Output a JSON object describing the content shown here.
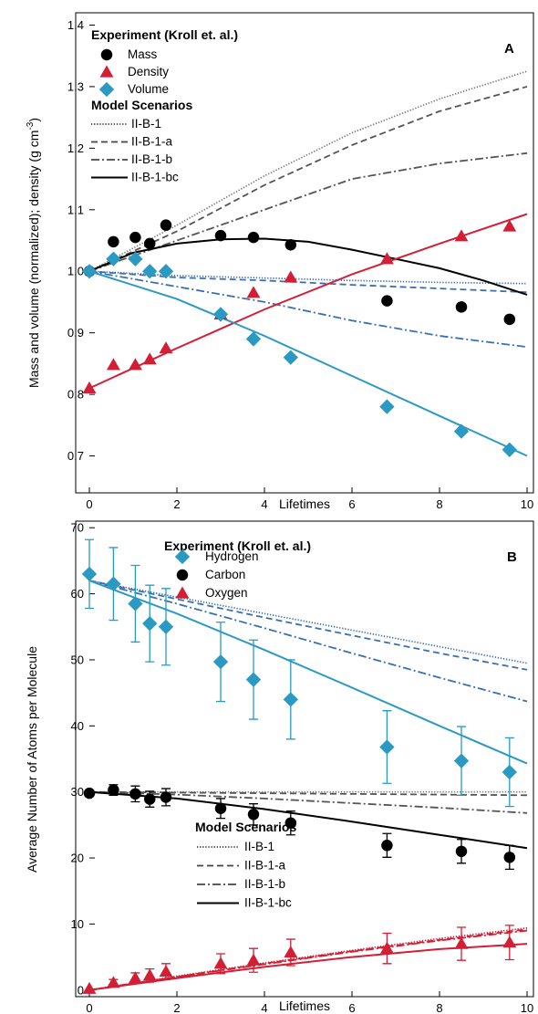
{
  "chart_data": [
    {
      "panel": "A",
      "type": "scatter",
      "xlabel": "Lifetimes",
      "ylabel": "Mass and volume (normalized); density (g cm-3)",
      "ylabel_parts": {
        "main": "Mass and volume (normalized); density (g cm",
        "sup": "-3",
        "end": ")"
      },
      "xlim": [
        0,
        10
      ],
      "ylim": [
        0.64,
        1.42
      ],
      "xticks": [
        "0",
        "2",
        "4",
        "6",
        "8",
        "10"
      ],
      "yticks": [
        "0.7",
        "0.8",
        "0.9",
        "1.0",
        "1.1",
        "1.2",
        "1.3",
        "1.4"
      ],
      "grid": false,
      "legend_placement": "top-left",
      "experiment_title": "Experiment (Kroll et. al.)",
      "model_title": "Model Scenarios",
      "experiment_series": [
        {
          "name": "Mass",
          "marker": "circle",
          "color": "#000000",
          "x": [
            0,
            0.55,
            1.05,
            1.38,
            1.75,
            3.0,
            3.75,
            4.6,
            6.8,
            8.5,
            9.6
          ],
          "y": [
            1.0,
            1.048,
            1.055,
            1.045,
            1.075,
            1.058,
            1.055,
            1.043,
            0.952,
            0.942,
            0.922
          ]
        },
        {
          "name": "Density",
          "marker": "triangle",
          "color": "#d21f35",
          "x": [
            0,
            0.55,
            1.05,
            1.38,
            1.75,
            3.0,
            3.75,
            4.6,
            6.8,
            8.5,
            9.6
          ],
          "y": [
            0.81,
            0.848,
            0.848,
            0.857,
            0.875,
            0.93,
            0.965,
            0.99,
            1.02,
            1.057,
            1.073
          ]
        },
        {
          "name": "Volume",
          "marker": "diamond",
          "color": "#2a9ac3",
          "x": [
            0,
            0.55,
            1.05,
            1.38,
            1.75,
            3.0,
            3.75,
            4.6,
            6.8,
            8.5,
            9.6
          ],
          "y": [
            1.0,
            1.02,
            1.02,
            1.0,
            1.0,
            0.93,
            0.89,
            0.86,
            0.78,
            0.74,
            0.71
          ]
        }
      ],
      "model_series": [
        {
          "name": "II-B-1",
          "style": "dotted",
          "color": "#777777",
          "x": [
            0,
            2,
            4,
            6,
            8,
            10
          ],
          "y": [
            1.0,
            1.075,
            1.155,
            1.225,
            1.28,
            1.325
          ]
        },
        {
          "name": "II-B-1",
          "style": "dotted",
          "color": "#3a70b0",
          "x": [
            0,
            2,
            4,
            6,
            8,
            10
          ],
          "y": [
            1.0,
            0.993,
            0.989,
            0.985,
            0.982,
            0.98
          ]
        },
        {
          "name": "II-B-1-a",
          "style": "dashed",
          "color": "#555555",
          "x": [
            0,
            2,
            4,
            6,
            8,
            10
          ],
          "y": [
            1.0,
            1.065,
            1.14,
            1.205,
            1.26,
            1.3
          ]
        },
        {
          "name": "II-B-1-a",
          "style": "dashed",
          "color": "#3a70b0",
          "x": [
            0,
            2,
            4,
            6,
            8,
            10
          ],
          "y": [
            1.0,
            0.99,
            0.985,
            0.978,
            0.972,
            0.966
          ]
        },
        {
          "name": "II-B-1-b",
          "style": "dashdot",
          "color": "#555555",
          "x": [
            0,
            2,
            4,
            6,
            8,
            10
          ],
          "y": [
            1.0,
            1.05,
            1.1,
            1.15,
            1.175,
            1.192
          ]
        },
        {
          "name": "II-B-1-b",
          "style": "dashdot",
          "color": "#3a70b0",
          "x": [
            0,
            2,
            4,
            6,
            8,
            10
          ],
          "y": [
            1.0,
            0.975,
            0.95,
            0.92,
            0.895,
            0.877
          ]
        },
        {
          "name": "II-B-1-bc",
          "style": "solid",
          "color": "#000000",
          "x": [
            0,
            1,
            2,
            3,
            4,
            5,
            6,
            7,
            8,
            9,
            10
          ],
          "y": [
            1.0,
            1.03,
            1.045,
            1.052,
            1.053,
            1.048,
            1.035,
            1.02,
            1.005,
            0.985,
            0.962
          ]
        },
        {
          "name": "II-B-1-bc",
          "style": "solid",
          "color": "#d21f35",
          "x": [
            0,
            2,
            4,
            6,
            8,
            10
          ],
          "y": [
            0.81,
            0.875,
            0.938,
            0.995,
            1.045,
            1.093
          ]
        },
        {
          "name": "II-B-1-bc",
          "style": "solid",
          "color": "#2a9ac3",
          "x": [
            0,
            2,
            4,
            6,
            8,
            10
          ],
          "y": [
            1.0,
            0.955,
            0.895,
            0.83,
            0.765,
            0.7
          ]
        }
      ],
      "legend_models": [
        {
          "name": "II-B-1",
          "style": "dotted"
        },
        {
          "name": "II-B-1-a",
          "style": "dashed"
        },
        {
          "name": "II-B-1-b",
          "style": "dashdot"
        },
        {
          "name": "II-B-1-bc",
          "style": "solid"
        }
      ]
    },
    {
      "panel": "B",
      "type": "scatter",
      "xlabel": "Lifetimes",
      "ylabel": "Average Number of Atoms per Molecule",
      "xlim": [
        0,
        10
      ],
      "ylim": [
        -1,
        71
      ],
      "xticks": [
        "0",
        "2",
        "4",
        "6",
        "8",
        "10"
      ],
      "yticks": [
        "0",
        "10",
        "20",
        "30",
        "40",
        "50",
        "60",
        "70"
      ],
      "grid": false,
      "legend_placement": "top-left",
      "experiment_title": "Experiment (Kroll et. al.)",
      "model_title": "Model Scenarios",
      "experiment_series": [
        {
          "name": "Hydrogen",
          "marker": "diamond",
          "color": "#2a9ac3",
          "x": [
            0,
            0.55,
            1.05,
            1.38,
            1.75,
            3.0,
            3.75,
            4.6,
            6.8,
            8.5,
            9.6
          ],
          "y": [
            63,
            61.5,
            58.5,
            55.5,
            55,
            49.7,
            47,
            44,
            36.8,
            34.7,
            33
          ],
          "err": [
            5.2,
            5.5,
            5.8,
            5.8,
            5.8,
            6.0,
            6.0,
            6.0,
            5.5,
            5.2,
            5.2
          ]
        },
        {
          "name": "Carbon",
          "marker": "circle",
          "color": "#000000",
          "x": [
            0,
            0.55,
            1.05,
            1.38,
            1.75,
            3.0,
            3.75,
            4.6,
            6.8,
            8.5,
            9.6
          ],
          "y": [
            29.8,
            30.3,
            29.7,
            28.9,
            29.2,
            27.5,
            26.6,
            25.3,
            21.9,
            21,
            20.1
          ],
          "err": [
            0,
            0.8,
            1.2,
            1.2,
            1.3,
            1.5,
            1.6,
            1.8,
            1.8,
            1.8,
            1.8
          ]
        },
        {
          "name": "Oxygen",
          "marker": "triangle",
          "color": "#d21f35",
          "x": [
            0,
            0.55,
            1.05,
            1.38,
            1.75,
            3.0,
            3.75,
            4.6,
            6.8,
            8.5,
            9.6
          ],
          "y": [
            0.2,
            1.1,
            1.8,
            2.2,
            2.8,
            4.0,
            4.5,
            5.7,
            6.3,
            7.0,
            7.2
          ],
          "err": [
            0,
            0.5,
            0.8,
            1.0,
            1.2,
            1.5,
            1.8,
            2.0,
            2.3,
            2.5,
            2.6
          ]
        }
      ],
      "model_series": [
        {
          "name": "II-B-1",
          "style": "dotted",
          "color": "#777777",
          "x": [
            0,
            10
          ],
          "y": [
            30,
            30
          ]
        },
        {
          "name": "II-B-1",
          "style": "dotted",
          "color": "#3a70b0",
          "x": [
            0,
            2,
            4,
            6,
            8,
            10
          ],
          "y": [
            62,
            59.5,
            57,
            54.5,
            52,
            49.5
          ]
        },
        {
          "name": "II-B-1",
          "style": "dotted",
          "color": "#d21f35",
          "x": [
            0,
            2,
            4,
            6,
            8,
            10
          ],
          "y": [
            0,
            2.1,
            4.1,
            6.0,
            7.8,
            9.4
          ]
        },
        {
          "name": "II-B-1-a",
          "style": "dashed",
          "color": "#555555",
          "x": [
            0,
            10
          ],
          "y": [
            30,
            29.5
          ]
        },
        {
          "name": "II-B-1-a",
          "style": "dashed",
          "color": "#3a70b0",
          "x": [
            0,
            2,
            4,
            6,
            8,
            10
          ],
          "y": [
            62,
            59.2,
            56.4,
            53.7,
            51,
            48.5
          ]
        },
        {
          "name": "II-B-1-a",
          "style": "dashed",
          "color": "#d21f35",
          "x": [
            0,
            2,
            4,
            6,
            8,
            10
          ],
          "y": [
            0,
            2.0,
            4.0,
            5.9,
            7.6,
            9.2
          ]
        },
        {
          "name": "II-B-1-b",
          "style": "dashdot",
          "color": "#555555",
          "x": [
            0,
            2,
            4,
            6,
            8,
            10
          ],
          "y": [
            30,
            29.6,
            29.0,
            28.3,
            27.6,
            26.8
          ]
        },
        {
          "name": "II-B-1-b",
          "style": "dashdot",
          "color": "#3a70b0",
          "x": [
            0,
            2,
            4,
            6,
            8,
            10
          ],
          "y": [
            62,
            58.5,
            54.8,
            51,
            47.3,
            43.7
          ]
        },
        {
          "name": "II-B-1-b",
          "style": "dashdot",
          "color": "#d21f35",
          "x": [
            0,
            2,
            4,
            6,
            8,
            10
          ],
          "y": [
            0,
            2.0,
            3.9,
            5.8,
            7.5,
            9.0
          ]
        },
        {
          "name": "II-B-1-bc",
          "style": "solid",
          "color": "#000000",
          "x": [
            0,
            2,
            4,
            6,
            8,
            10
          ],
          "y": [
            30,
            29.0,
            27.4,
            25.5,
            23.5,
            21.5
          ]
        },
        {
          "name": "II-B-1-bc",
          "style": "solid",
          "color": "#2a9ac3",
          "x": [
            0,
            2,
            4,
            6,
            8,
            10
          ],
          "y": [
            62,
            57,
            51.5,
            45.8,
            40,
            34.3
          ]
        },
        {
          "name": "II-B-1-bc",
          "style": "solid",
          "color": "#d21f35",
          "x": [
            0,
            2,
            4,
            6,
            8,
            10
          ],
          "y": [
            0,
            1.8,
            3.5,
            5.0,
            6.2,
            7.0
          ]
        }
      ],
      "legend_models": [
        {
          "name": "II-B-1",
          "style": "dotted"
        },
        {
          "name": "II-B-1-a",
          "style": "dashed"
        },
        {
          "name": "II-B-1-b",
          "style": "dashdot"
        },
        {
          "name": "II-B-1-bc",
          "style": "solid"
        }
      ]
    }
  ]
}
